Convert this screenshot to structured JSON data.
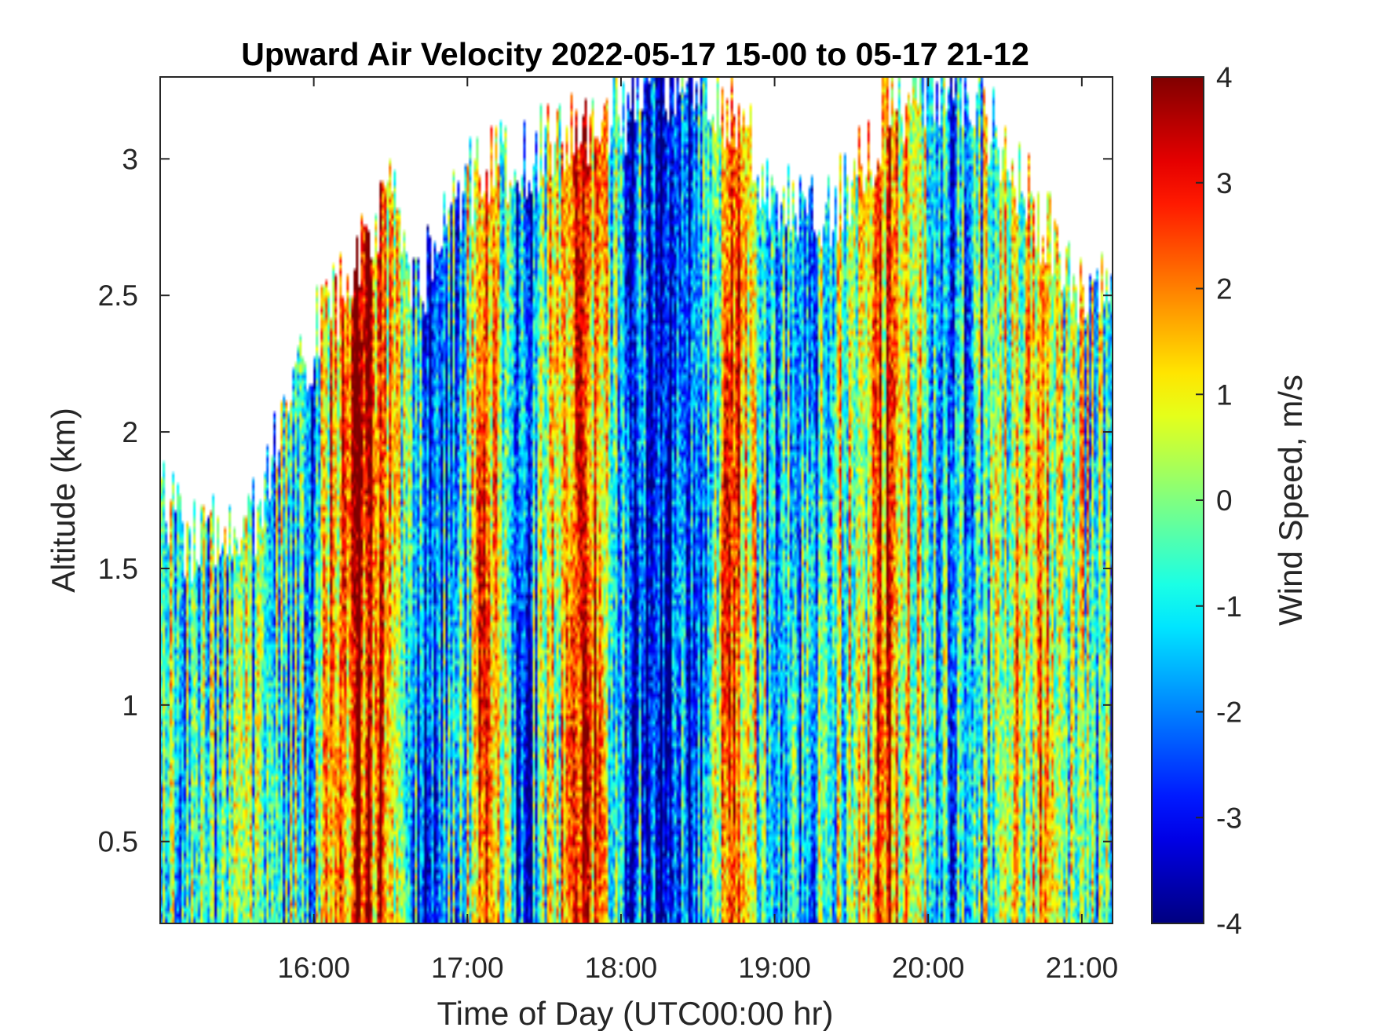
{
  "chart_data": {
    "type": "heatmap",
    "title": "Upward Air Velocity 2022-05-17 15-00 to 05-17 21-12",
    "xlabel": "Time of Day (UTC00:00 hr)",
    "ylabel": "Altitude (km)",
    "colorbar_label": "Wind Speed, m/s",
    "colormap": "jet",
    "xlim": [
      "15:00",
      "21:12"
    ],
    "ylim": [
      0.2,
      3.3
    ],
    "clim": [
      -4,
      4
    ],
    "x_ticks": [
      {
        "value": "16:00",
        "label": "16:00"
      },
      {
        "value": "17:00",
        "label": "17:00"
      },
      {
        "value": "18:00",
        "label": "18:00"
      },
      {
        "value": "19:00",
        "label": "19:00"
      },
      {
        "value": "20:00",
        "label": "20:00"
      },
      {
        "value": "21:00",
        "label": "21:00"
      }
    ],
    "y_ticks": [
      {
        "value": 0.5,
        "label": "0.5"
      },
      {
        "value": 1,
        "label": "1"
      },
      {
        "value": 1.5,
        "label": "1.5"
      },
      {
        "value": 2,
        "label": "2"
      },
      {
        "value": 2.5,
        "label": "2.5"
      },
      {
        "value": 3,
        "label": "3"
      }
    ],
    "colorbar_ticks": [
      {
        "value": 4,
        "label": "4"
      },
      {
        "value": 3,
        "label": "3"
      },
      {
        "value": 2,
        "label": "2"
      },
      {
        "value": 1,
        "label": "1"
      },
      {
        "value": 0,
        "label": "0"
      },
      {
        "value": -1,
        "label": "-1"
      },
      {
        "value": -2,
        "label": "-2"
      },
      {
        "value": -3,
        "label": "-3"
      },
      {
        "value": -4,
        "label": "-4"
      }
    ],
    "data_top_altitude_km": [
      {
        "time": "15:00",
        "altitude_km": 1.78
      },
      {
        "time": "15:10",
        "altitude_km": 1.62
      },
      {
        "time": "15:20",
        "altitude_km": 1.6
      },
      {
        "time": "15:30",
        "altitude_km": 1.68
      },
      {
        "time": "15:40",
        "altitude_km": 1.75
      },
      {
        "time": "15:50",
        "altitude_km": 2.15
      },
      {
        "time": "16:00",
        "altitude_km": 2.35
      },
      {
        "time": "16:15",
        "altitude_km": 2.6
      },
      {
        "time": "16:30",
        "altitude_km": 2.85
      },
      {
        "time": "16:40",
        "altitude_km": 2.5
      },
      {
        "time": "16:50",
        "altitude_km": 2.7
      },
      {
        "time": "17:00",
        "altitude_km": 2.9
      },
      {
        "time": "17:15",
        "altitude_km": 3.0
      },
      {
        "time": "17:30",
        "altitude_km": 3.05
      },
      {
        "time": "17:45",
        "altitude_km": 3.1
      },
      {
        "time": "18:00",
        "altitude_km": 3.15
      },
      {
        "time": "18:15",
        "altitude_km": 3.3
      },
      {
        "time": "18:30",
        "altitude_km": 3.3
      },
      {
        "time": "18:45",
        "altitude_km": 3.1
      },
      {
        "time": "19:00",
        "altitude_km": 2.9
      },
      {
        "time": "19:15",
        "altitude_km": 2.8
      },
      {
        "time": "19:30",
        "altitude_km": 2.9
      },
      {
        "time": "19:45",
        "altitude_km": 3.2
      },
      {
        "time": "20:00",
        "altitude_km": 3.3
      },
      {
        "time": "20:15",
        "altitude_km": 3.3
      },
      {
        "time": "20:30",
        "altitude_km": 3.0
      },
      {
        "time": "20:45",
        "altitude_km": 2.75
      },
      {
        "time": "21:00",
        "altitude_km": 2.45
      },
      {
        "time": "21:12",
        "altitude_km": 2.5
      }
    ],
    "velocity_bands": [
      {
        "time": "15:00",
        "velocity_ms": -0.5
      },
      {
        "time": "15:30",
        "velocity_ms": -1.0
      },
      {
        "time": "15:45",
        "velocity_ms": -0.3
      },
      {
        "time": "16:00",
        "velocity_ms": -1.5
      },
      {
        "time": "16:10",
        "velocity_ms": 2.5
      },
      {
        "time": "16:20",
        "velocity_ms": 3.5
      },
      {
        "time": "16:30",
        "velocity_ms": 1.5
      },
      {
        "time": "16:45",
        "velocity_ms": -2.5
      },
      {
        "time": "17:00",
        "velocity_ms": -0.5
      },
      {
        "time": "17:05",
        "velocity_ms": 3.0
      },
      {
        "time": "17:20",
        "velocity_ms": -3.0
      },
      {
        "time": "17:30",
        "velocity_ms": -0.5
      },
      {
        "time": "17:45",
        "velocity_ms": 3.2
      },
      {
        "time": "18:00",
        "velocity_ms": -1.5
      },
      {
        "time": "18:20",
        "velocity_ms": -3.5
      },
      {
        "time": "18:35",
        "velocity_ms": -0.5
      },
      {
        "time": "18:45",
        "velocity_ms": 2.5
      },
      {
        "time": "19:00",
        "velocity_ms": -2.0
      },
      {
        "time": "19:15",
        "velocity_ms": -1.0
      },
      {
        "time": "19:30",
        "velocity_ms": 0.5
      },
      {
        "time": "19:45",
        "velocity_ms": 2.0
      },
      {
        "time": "20:00",
        "velocity_ms": -0.5
      },
      {
        "time": "20:15",
        "velocity_ms": -1.5
      },
      {
        "time": "20:30",
        "velocity_ms": 0.5
      },
      {
        "time": "20:45",
        "velocity_ms": 1.0
      },
      {
        "time": "21:00",
        "velocity_ms": 0.0
      },
      {
        "time": "21:12",
        "velocity_ms": -1.0
      }
    ]
  }
}
